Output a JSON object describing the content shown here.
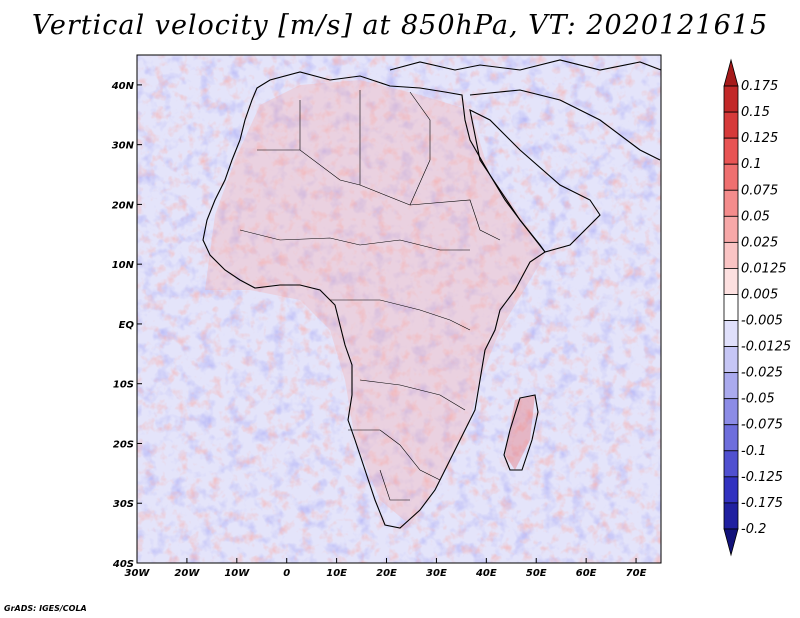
{
  "title": "Vertical velocity [m/s] at 850hPa, VT: 2020121615",
  "credit": "GrADS: IGES/COLA",
  "map": {
    "lon_range": [
      -30,
      75
    ],
    "lat_range": [
      -40,
      45
    ],
    "lon_ticks": [
      {
        "value": -30,
        "label": "30W"
      },
      {
        "value": -20,
        "label": "20W"
      },
      {
        "value": -10,
        "label": "10W"
      },
      {
        "value": 0,
        "label": "0"
      },
      {
        "value": 10,
        "label": "10E"
      },
      {
        "value": 20,
        "label": "20E"
      },
      {
        "value": 30,
        "label": "30E"
      },
      {
        "value": 40,
        "label": "40E"
      },
      {
        "value": 50,
        "label": "50E"
      },
      {
        "value": 60,
        "label": "60E"
      },
      {
        "value": 70,
        "label": "70E"
      }
    ],
    "lat_ticks": [
      {
        "value": 40,
        "label": "40N"
      },
      {
        "value": 30,
        "label": "30N"
      },
      {
        "value": 20,
        "label": "20N"
      },
      {
        "value": 10,
        "label": "10N"
      },
      {
        "value": 0,
        "label": "EQ"
      },
      {
        "value": -10,
        "label": "10S"
      },
      {
        "value": -20,
        "label": "20S"
      },
      {
        "value": -30,
        "label": "30S"
      },
      {
        "value": -40,
        "label": "40S"
      }
    ]
  },
  "colorbar": {
    "labels": [
      "0.175",
      "0.15",
      "0.125",
      "0.1",
      "0.075",
      "0.05",
      "0.025",
      "0.0125",
      "0.005",
      "-0.005",
      "-0.0125",
      "-0.025",
      "-0.05",
      "-0.075",
      "-0.1",
      "-0.125",
      "-0.175",
      "-0.2"
    ],
    "colors": [
      "#a51a1a",
      "#c22828",
      "#d63a3a",
      "#e85454",
      "#ef7070",
      "#f48c8c",
      "#f7a8a8",
      "#fac4c4",
      "#fde0e0",
      "#ffffff",
      "#e0e0fb",
      "#c6c6f5",
      "#aaaaee",
      "#8c8ce6",
      "#6e6edc",
      "#5050d0",
      "#3232c0",
      "#2020a0",
      "#12127a"
    ]
  }
}
